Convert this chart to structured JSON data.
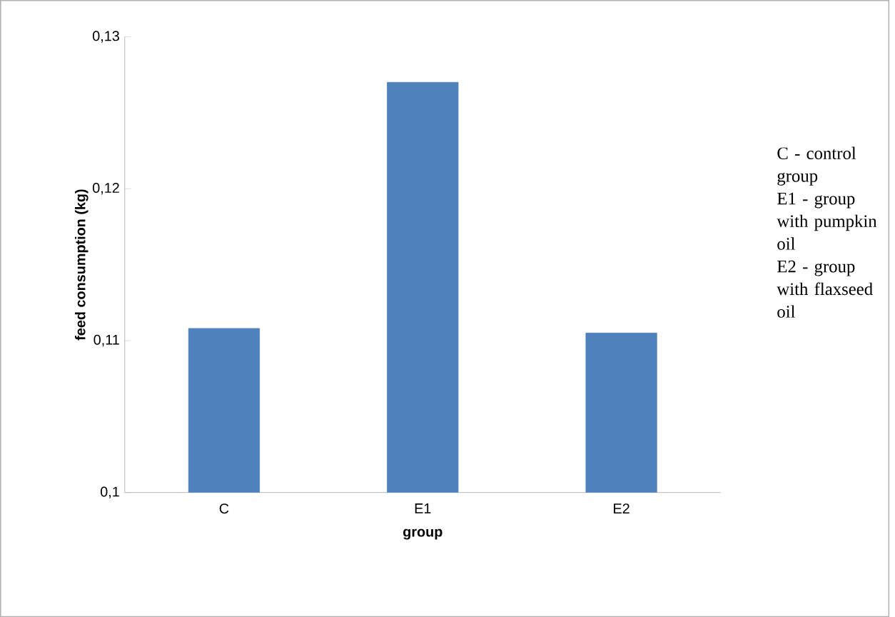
{
  "chart_data": {
    "type": "bar",
    "xlabel": "group",
    "ylabel": "feed consumption (kg)",
    "categories": [
      "C",
      "E1",
      "E2"
    ],
    "values": [
      0.1108,
      0.127,
      0.1105
    ],
    "color": "#4f81bd",
    "ylim": [
      0.1,
      0.13
    ],
    "yticks": [
      {
        "value": 0.1,
        "label": "0,1"
      },
      {
        "value": 0.11,
        "label": "0,11"
      },
      {
        "value": 0.12,
        "label": "0,12"
      },
      {
        "value": 0.13,
        "label": "0,13"
      }
    ],
    "grid": false,
    "annotations": [
      "C - control group",
      "E1 - group with pumpkin oil",
      "E2 - group with flaxseed oil"
    ]
  }
}
